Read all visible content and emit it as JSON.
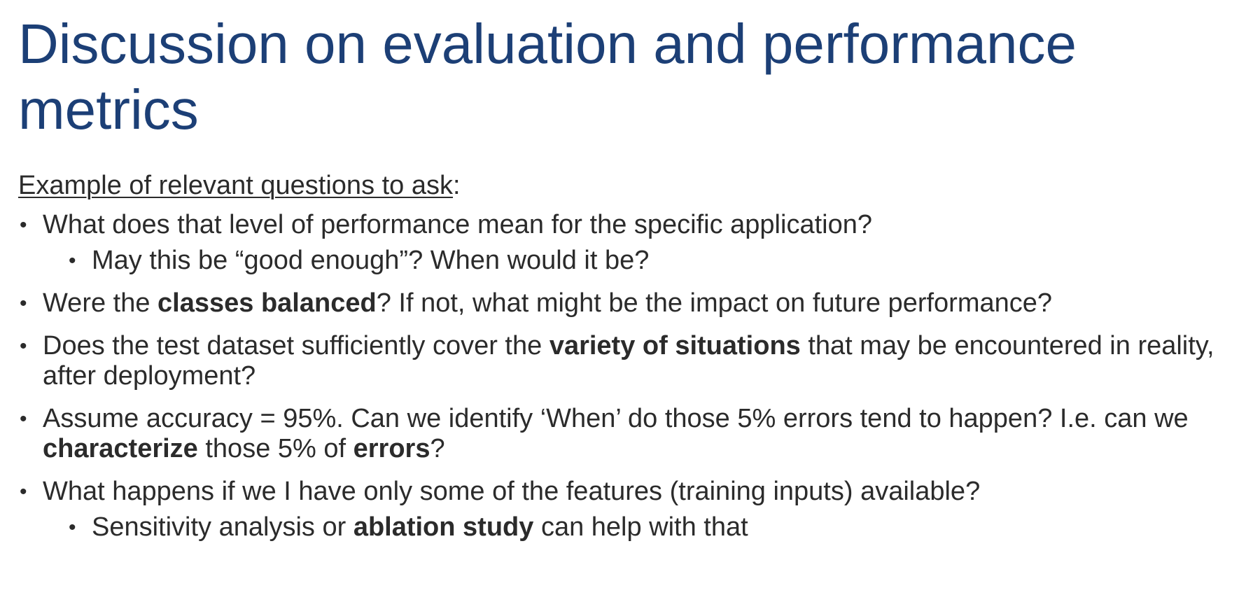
{
  "slide": {
    "title": "Discussion on evaluation and performance metrics",
    "intro": {
      "underlined": "Example of relevant questions to ask",
      "suffix": ":"
    },
    "bullet_char": "•",
    "bullets": [
      {
        "level": 1,
        "segments": [
          {
            "text": "What does that level of performance mean for the specific application?",
            "bold": false
          }
        ]
      },
      {
        "level": 2,
        "segments": [
          {
            "text": "May this be “good enough”? When would it be?",
            "bold": false
          }
        ]
      },
      {
        "level": 1,
        "segments": [
          {
            "text": "Were the ",
            "bold": false
          },
          {
            "text": "classes balanced",
            "bold": true
          },
          {
            "text": "? If not, what might be the impact on future performance?",
            "bold": false
          }
        ]
      },
      {
        "level": 1,
        "segments": [
          {
            "text": "Does the test dataset sufficiently cover the ",
            "bold": false
          },
          {
            "text": "variety of situations",
            "bold": true
          },
          {
            "text": " that may be encountered in reality, after deployment?",
            "bold": false
          }
        ]
      },
      {
        "level": 1,
        "segments": [
          {
            "text": "Assume accuracy = 95%. Can we identify ‘When’ do those 5% errors tend to happen? I.e. can we ",
            "bold": false
          },
          {
            "text": "characterize",
            "bold": true
          },
          {
            "text": " those 5% of ",
            "bold": false
          },
          {
            "text": "errors",
            "bold": true
          },
          {
            "text": "?",
            "bold": false
          }
        ]
      },
      {
        "level": 1,
        "segments": [
          {
            "text": "What happens if we I have only some of the features (training inputs) available?",
            "bold": false
          }
        ]
      },
      {
        "level": 2,
        "segments": [
          {
            "text": "Sensitivity analysis or ",
            "bold": false
          },
          {
            "text": "ablation study",
            "bold": true
          },
          {
            "text": " can help with that",
            "bold": false
          }
        ]
      }
    ],
    "colors": {
      "title": "#1c3f76",
      "body": "#2b2b2b",
      "background": "#ffffff"
    }
  }
}
